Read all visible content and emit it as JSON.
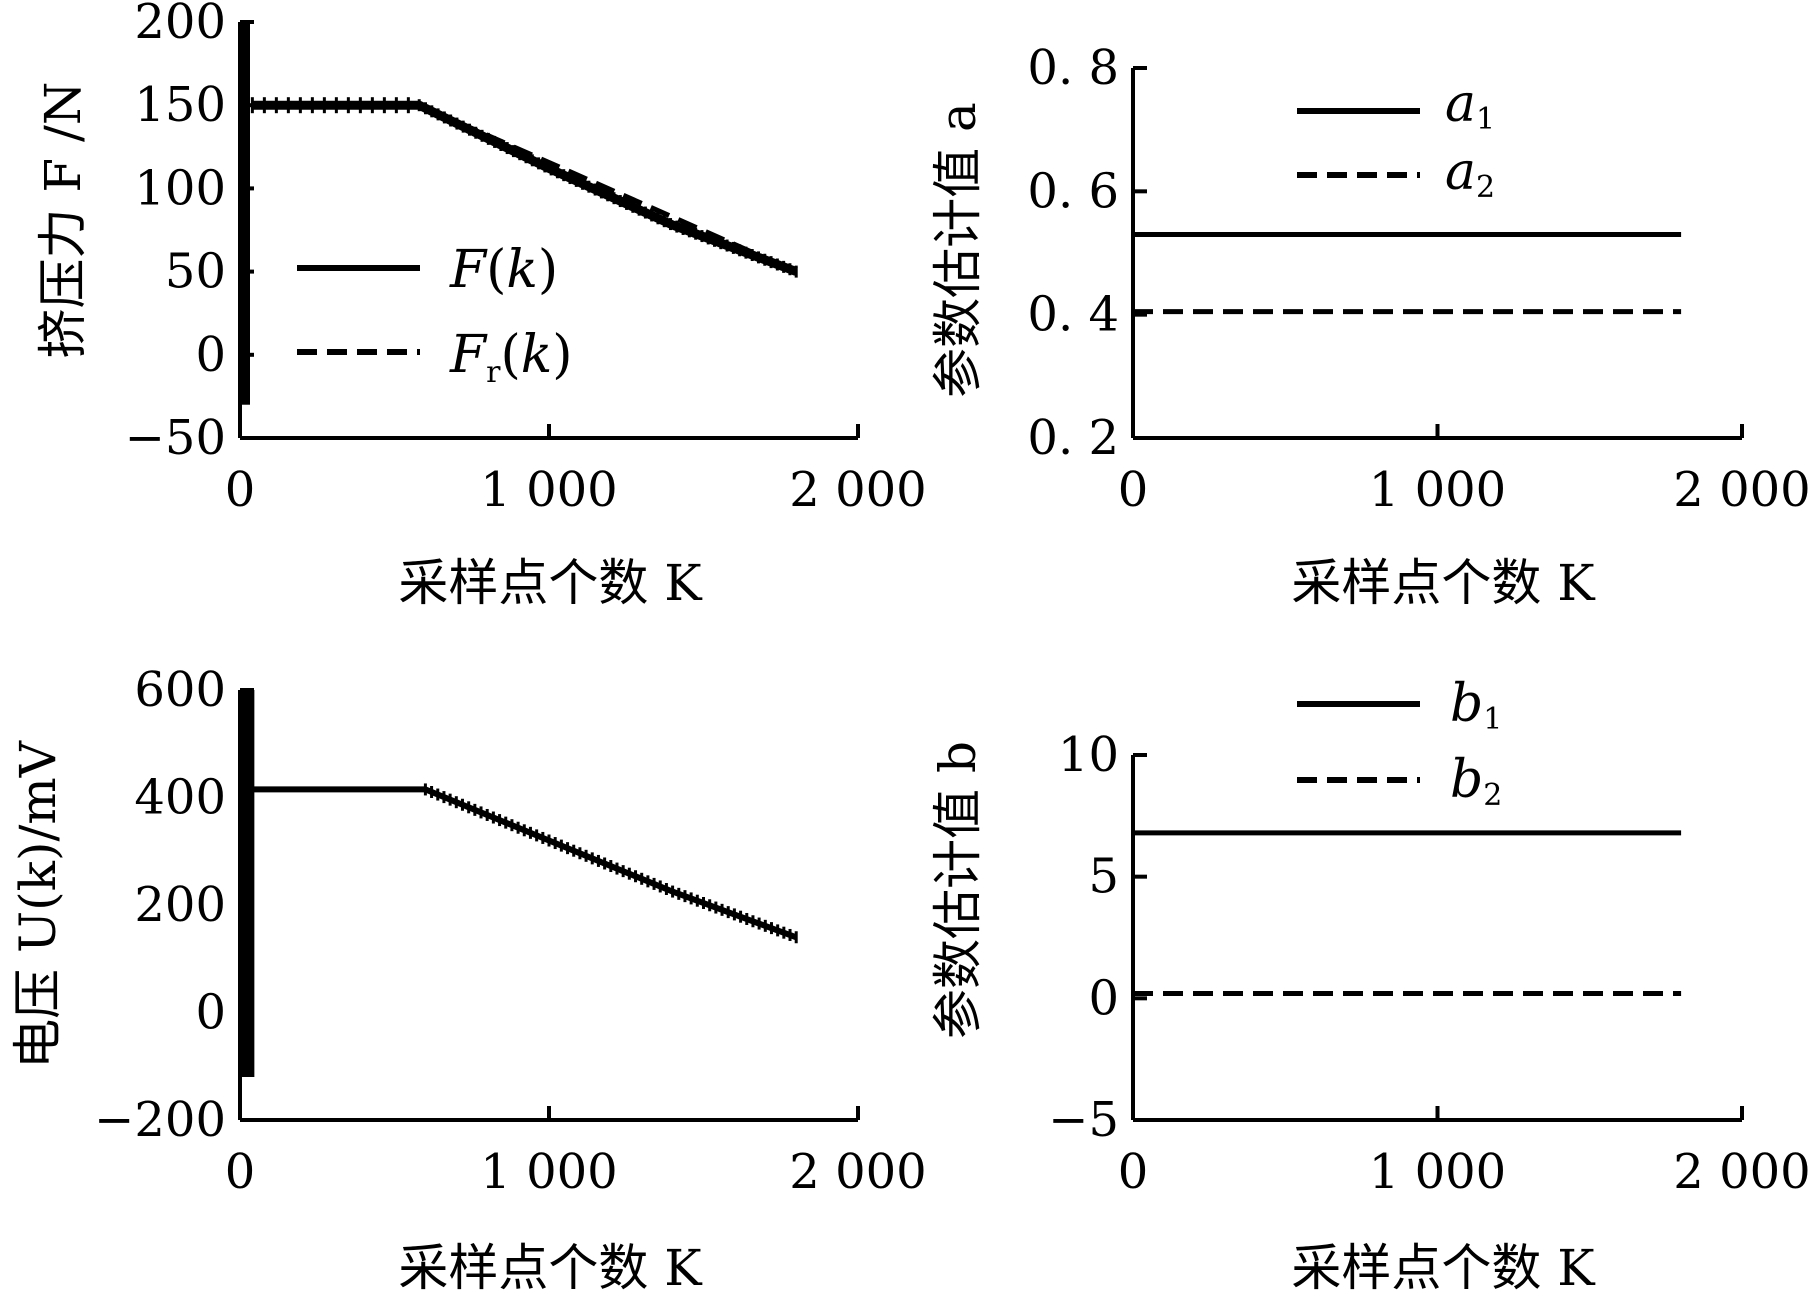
{
  "chart_data": [
    {
      "type": "line",
      "xlabel": "采样点个数 K",
      "ylabel": "挤压力 F /N",
      "xlim": [
        0,
        2000
      ],
      "ylim": [
        -50,
        200
      ],
      "xticks": [
        "0",
        "1 000",
        "2 000"
      ],
      "yticks": [
        "−50",
        "0",
        "50",
        "100",
        "150",
        "200"
      ],
      "grid": false,
      "legend_position": "center-left",
      "series": [
        {
          "name": "F(k)",
          "style": "solid",
          "points": [
            [
              0,
              200
            ],
            [
              0,
              -30
            ],
            [
              25,
              200
            ],
            [
              25,
              -30
            ],
            [
              40,
              150
            ],
            [
              580,
              150
            ],
            [
              1000,
              112
            ],
            [
              1400,
              78
            ],
            [
              1800,
              50
            ]
          ]
        },
        {
          "name": "Fr(k)",
          "style": "dashed",
          "points": [
            [
              40,
              150
            ],
            [
              580,
              150
            ],
            [
              1800,
              50
            ]
          ]
        }
      ]
    },
    {
      "type": "line",
      "xlabel": "采样点个数 K",
      "ylabel": "参数估计值 a",
      "xlim": [
        0,
        2000
      ],
      "ylim": [
        0.2,
        0.8
      ],
      "xticks": [
        "0",
        "1 000",
        "2 000"
      ],
      "yticks": [
        "0. 2",
        "0. 4",
        "0. 6",
        "0. 8"
      ],
      "grid": false,
      "legend_position": "top-center",
      "series": [
        {
          "name": "a1",
          "style": "solid",
          "points": [
            [
              0,
              0.53
            ],
            [
              1800,
              0.53
            ]
          ]
        },
        {
          "name": "a2",
          "style": "dashed",
          "points": [
            [
              0,
              0.405
            ],
            [
              1800,
              0.405
            ]
          ]
        }
      ]
    },
    {
      "type": "line",
      "xlabel": "采样点个数 K",
      "ylabel": "电压 U(k)/mV",
      "xlim": [
        0,
        2000
      ],
      "ylim": [
        -200,
        600
      ],
      "xticks": [
        "0",
        "1 000",
        "2 000"
      ],
      "yticks": [
        "−200",
        "0",
        "200",
        "400",
        "600"
      ],
      "grid": false,
      "series": [
        {
          "name": "",
          "style": "solid",
          "points": [
            [
              0,
              600
            ],
            [
              0,
              -120
            ],
            [
              40,
              600
            ],
            [
              40,
              -120
            ],
            [
              40,
              415
            ],
            [
              600,
              415
            ],
            [
              1000,
              320
            ],
            [
              1400,
              225
            ],
            [
              1800,
              140
            ]
          ]
        }
      ]
    },
    {
      "type": "line",
      "xlabel": "采样点个数 K",
      "ylabel": "参数估计值 b",
      "xlim": [
        0,
        2000
      ],
      "ylim": [
        -5,
        10
      ],
      "xticks": [
        "0",
        "1 000",
        "2 000"
      ],
      "yticks": [
        "−5",
        "0",
        "5",
        "10"
      ],
      "grid": false,
      "legend_position": "top-center",
      "series": [
        {
          "name": "b1",
          "style": "solid",
          "points": [
            [
              0,
              6.8
            ],
            [
              1800,
              6.8
            ]
          ]
        },
        {
          "name": "b2",
          "style": "dashed",
          "points": [
            [
              0,
              0.2
            ],
            [
              1800,
              0.2
            ]
          ]
        }
      ]
    }
  ],
  "legend": {
    "p1_f": "F",
    "p1_k": "k",
    "p1_fr_f": "F",
    "p1_fr_r": "r",
    "p1_fr_k": "k",
    "p2_a1": "a",
    "p2_a1_sub": "1",
    "p2_a2": "a",
    "p2_a2_sub": "2",
    "p4_b1": "b",
    "p4_b1_sub": "1",
    "p4_b2": "b",
    "p4_b2_sub": "2"
  }
}
